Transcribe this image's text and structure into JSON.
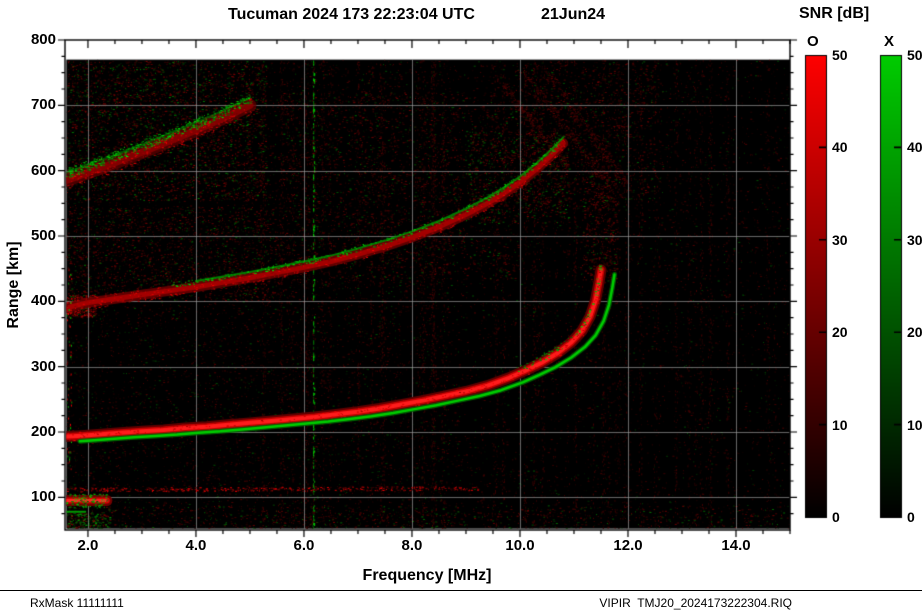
{
  "header": {
    "title": "Tucuman 2024 173 22:23:04 UTC",
    "date": "21Jun24"
  },
  "footer": {
    "rxmask": "RxMask 11111111",
    "file": "VIPIR  TMJ20_2024173222304.RIQ"
  },
  "chart_data": {
    "type": "heatmap",
    "title": "Tucuman 2024 173 22:23:04 UTC",
    "date_label": "21Jun24",
    "xlabel": "Frequency [MHz]",
    "ylabel": "Range [km]",
    "x_range": [
      1.575,
      15.0
    ],
    "y_range": [
      50,
      800
    ],
    "x_ticks": [
      2,
      4,
      6,
      8,
      10,
      12,
      14
    ],
    "x_tick_labels": [
      "2.0",
      "4.0",
      "6.0",
      "8.0",
      "10.0",
      "12.0",
      "14.0"
    ],
    "x_minor_step": 0.5,
    "y_ticks": [
      100,
      200,
      300,
      400,
      500,
      600,
      700,
      800
    ],
    "y_minor_step": 25,
    "grid": true,
    "background": "#000000",
    "data_area": {
      "f_min": 1.6,
      "f_max": 15.0,
      "r_min": 52,
      "r_max": 770
    },
    "colorbar": {
      "title": "SNR [dB]",
      "min": 0,
      "max": 50,
      "ticks": [
        0,
        10,
        20,
        30,
        40,
        50
      ],
      "o_label": "O",
      "x_label": "X",
      "o_color": "#ff0000",
      "x_color": "#00cc00"
    },
    "traces": {
      "fof2_mhz": 11.5,
      "f2_o": [
        [
          1.6,
          193
        ],
        [
          1.8,
          194
        ],
        [
          2.0,
          195
        ],
        [
          2.3,
          197
        ],
        [
          2.6,
          199
        ],
        [
          3.0,
          201
        ],
        [
          3.4,
          203
        ],
        [
          3.8,
          206
        ],
        [
          4.2,
          208
        ],
        [
          4.6,
          211
        ],
        [
          5.0,
          214
        ],
        [
          5.4,
          217
        ],
        [
          5.8,
          220
        ],
        [
          6.2,
          223
        ],
        [
          6.6,
          227
        ],
        [
          7.0,
          231
        ],
        [
          7.4,
          236
        ],
        [
          7.8,
          242
        ],
        [
          8.2,
          248
        ],
        [
          8.6,
          255
        ],
        [
          9.0,
          262
        ],
        [
          9.4,
          271
        ],
        [
          9.8,
          283
        ],
        [
          10.1,
          294
        ],
        [
          10.4,
          306
        ],
        [
          10.7,
          321
        ],
        [
          10.95,
          337
        ],
        [
          11.15,
          355
        ],
        [
          11.3,
          377
        ],
        [
          11.4,
          402
        ],
        [
          11.46,
          428
        ],
        [
          11.5,
          448
        ]
      ],
      "f2_x": {
        "df": 0.25,
        "dr": -7
      },
      "second_hop": [
        [
          1.6,
          390
        ],
        [
          2.0,
          398
        ],
        [
          2.5,
          404
        ],
        [
          3.0,
          410
        ],
        [
          3.5,
          416
        ],
        [
          4.0,
          422
        ],
        [
          4.5,
          429
        ],
        [
          5.0,
          436
        ],
        [
          5.5,
          444
        ],
        [
          6.0,
          452
        ],
        [
          6.5,
          461
        ],
        [
          7.0,
          472
        ],
        [
          7.5,
          484
        ],
        [
          8.0,
          498
        ],
        [
          8.5,
          514
        ],
        [
          9.0,
          533
        ],
        [
          9.4,
          550
        ],
        [
          9.7,
          565
        ],
        [
          10.0,
          582
        ],
        [
          10.3,
          602
        ],
        [
          10.6,
          625
        ],
        [
          10.8,
          642
        ]
      ],
      "third_hop": [
        [
          1.6,
          585
        ],
        [
          2.0,
          597
        ],
        [
          2.5,
          612
        ],
        [
          3.0,
          628
        ],
        [
          3.5,
          645
        ],
        [
          4.0,
          662
        ],
        [
          4.5,
          680
        ],
        [
          5.0,
          700
        ]
      ],
      "e_layer": {
        "f0": 1.6,
        "f1": 2.35,
        "r": 95
      },
      "es_line": {
        "f0": 1.6,
        "f1": 9.2,
        "r": 112
      }
    },
    "noise": {
      "seed": 42,
      "bands": [
        {
          "f": [
            1.6,
            5.3
          ],
          "r": [
            555,
            768
          ],
          "n": 2600,
          "green": 0.3,
          "bright": 110
        },
        {
          "f": [
            1.6,
            5.6
          ],
          "r": [
            400,
            545
          ],
          "n": 1500,
          "green": 0.15,
          "bright": 95
        },
        {
          "f": [
            5.6,
            9.9
          ],
          "r": [
            430,
            720
          ],
          "n": 1700,
          "green": 0.18,
          "bright": 95
        },
        {
          "f": [
            9.9,
            12.5
          ],
          "r": [
            540,
            768
          ],
          "n": 1200,
          "green": 0.12,
          "bright": 90
        },
        {
          "f": [
            11.15,
            11.8
          ],
          "r": [
            430,
            600
          ],
          "n": 420,
          "green": 0.1,
          "bright": 110
        },
        {
          "f": [
            1.6,
            15.0
          ],
          "r": [
            52,
            88
          ],
          "n": 750,
          "green": 0.3,
          "bright": 100
        },
        {
          "f": [
            1.6,
            2.4
          ],
          "r": [
            52,
            76
          ],
          "n": 230,
          "green": 0.6,
          "bright": 150
        },
        {
          "f": [
            9.0,
            10.9
          ],
          "r": [
            520,
            660
          ],
          "n": 700,
          "green": 0.35,
          "bright": 110
        },
        {
          "f": [
            1.6,
            2.15
          ],
          "r": [
            376,
            410
          ],
          "n": 420,
          "green": 0.12,
          "bright": 190
        }
      ],
      "streaks": [
        [
          10.0,
          755,
          11.6,
          585
        ],
        [
          10.5,
          750,
          12.0,
          575
        ],
        [
          9.6,
          740,
          10.9,
          600
        ]
      ],
      "rfi_lines_mhz": [
        6.17
      ]
    }
  }
}
